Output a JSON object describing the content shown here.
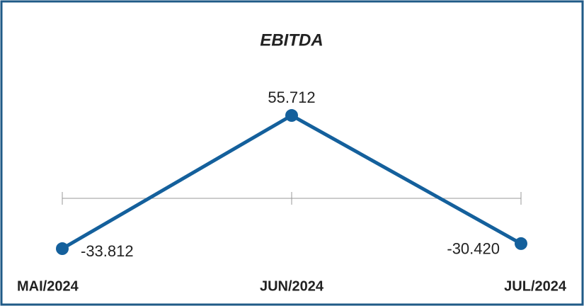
{
  "chart_data": {
    "type": "line",
    "title": "EBITDA",
    "categories": [
      "MAI/2024",
      "JUN/2024",
      "JUL/2024"
    ],
    "values": [
      -33812,
      55712,
      -30420
    ],
    "value_labels": [
      "-33.812",
      "55.712",
      "-30.420"
    ],
    "color": "#14609c",
    "ylim": [
      -40000,
      70000
    ]
  }
}
